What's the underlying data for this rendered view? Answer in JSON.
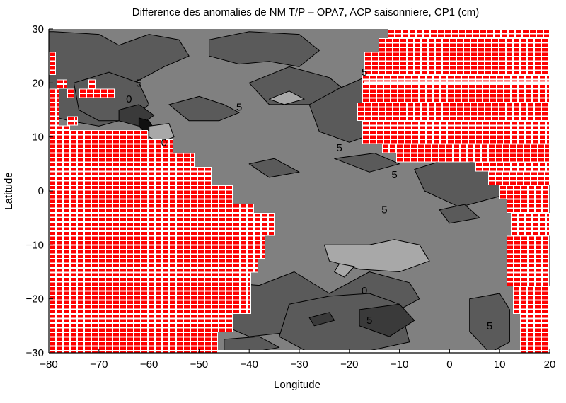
{
  "chart_data": {
    "type": "heatmap",
    "subtype": "filled-contour map",
    "title": "Difference des anomalies de NM T/P – OPA7, ACP saisonniere, CP1   (cm)",
    "xlabel": "Longitude",
    "ylabel": "Latitude",
    "xlim": [
      -80,
      20
    ],
    "ylim": [
      -30,
      30
    ],
    "x_ticks": [
      -80,
      -70,
      -60,
      -50,
      -40,
      -30,
      -20,
      -10,
      0,
      10,
      20
    ],
    "y_ticks": [
      -30,
      -20,
      -10,
      0,
      10,
      20,
      30
    ],
    "x_tick_labels": [
      "−80",
      "−70",
      "−60",
      "−50",
      "−40",
      "−30",
      "−20",
      "−10",
      "0",
      "10",
      "20"
    ],
    "y_tick_labels": [
      "−30",
      "−20",
      "−10",
      "0",
      "10",
      "20",
      "30"
    ],
    "grid": false,
    "colors": {
      "background_field": "#808080",
      "level_low": "#5a5a5a",
      "level_high": "#a8a8a8",
      "level_min": "#3a3a3a",
      "level_extreme": "#111111",
      "land_mask": "#ff0000",
      "land_grid": "#ffffff"
    },
    "levels": [
      -10,
      -5,
      0,
      5,
      10
    ],
    "regions": [
      {
        "name": "lower level",
        "color": "level_low",
        "points": [
          [
            -79,
            29.5
          ],
          [
            -70,
            29
          ],
          [
            -66,
            27
          ],
          [
            -60,
            29
          ],
          [
            -54,
            28
          ],
          [
            -52,
            25
          ],
          [
            -57,
            23
          ],
          [
            -61,
            21
          ],
          [
            -65,
            19
          ],
          [
            -68,
            16
          ],
          [
            -66,
            13
          ],
          [
            -70,
            12
          ],
          [
            -76,
            13
          ],
          [
            -80,
            14
          ],
          [
            -80,
            29.5
          ]
        ]
      },
      {
        "name": "lower level",
        "color": "level_low",
        "points": [
          [
            -75,
            20
          ],
          [
            -68,
            22
          ],
          [
            -62,
            20
          ],
          [
            -60,
            16
          ],
          [
            -64,
            13
          ],
          [
            -70,
            13
          ],
          [
            -74,
            15
          ]
        ]
      },
      {
        "name": "lower level",
        "color": "level_low",
        "points": [
          [
            -56,
            16
          ],
          [
            -50,
            17.5
          ],
          [
            -45,
            16
          ],
          [
            -42,
            14.5
          ],
          [
            -46,
            13
          ],
          [
            -52,
            13
          ]
        ]
      },
      {
        "name": "lower level",
        "color": "level_low",
        "points": [
          [
            -48,
            28
          ],
          [
            -40,
            29.5
          ],
          [
            -30,
            29
          ],
          [
            -26,
            26
          ],
          [
            -30,
            23
          ],
          [
            -36,
            24
          ],
          [
            -42,
            23.5
          ],
          [
            -48,
            25
          ]
        ]
      },
      {
        "name": "lower level",
        "color": "level_low",
        "points": [
          [
            -40,
            20
          ],
          [
            -32,
            23
          ],
          [
            -24,
            21
          ],
          [
            -20,
            18
          ],
          [
            -27,
            16
          ],
          [
            -36,
            16
          ]
        ]
      },
      {
        "name": "lower level",
        "color": "level_low",
        "points": [
          [
            -28,
            16
          ],
          [
            -22,
            19
          ],
          [
            -17,
            21
          ],
          [
            -12,
            21
          ],
          [
            -11,
            15
          ],
          [
            -14,
            11
          ],
          [
            -20,
            9
          ],
          [
            -26,
            11
          ]
        ]
      },
      {
        "name": "lower level",
        "color": "level_low",
        "points": [
          [
            -40,
            5
          ],
          [
            -35,
            6
          ],
          [
            -30,
            3.5
          ],
          [
            -36,
            2.5
          ]
        ]
      },
      {
        "name": "lower level",
        "color": "level_low",
        "points": [
          [
            -23,
            6
          ],
          [
            -15,
            7
          ],
          [
            -10,
            5
          ],
          [
            -16,
            3.5
          ]
        ]
      },
      {
        "name": "lower level",
        "color": "level_low",
        "points": [
          [
            -7,
            4
          ],
          [
            0,
            6
          ],
          [
            6,
            5
          ],
          [
            10,
            3
          ],
          [
            10,
            -1
          ],
          [
            2,
            -3
          ],
          [
            -5,
            0
          ]
        ]
      },
      {
        "name": "lower level",
        "color": "level_low",
        "points": [
          [
            -2,
            -3.5
          ],
          [
            3,
            -2.5
          ],
          [
            6,
            -5
          ],
          [
            0,
            -6
          ]
        ]
      },
      {
        "name": "lower level",
        "color": "level_low",
        "points": [
          [
            -45,
            -17
          ],
          [
            -38,
            -17.5
          ],
          [
            -31,
            -15
          ],
          [
            -24,
            -19
          ],
          [
            -16,
            -15
          ],
          [
            -8,
            -17
          ],
          [
            -6,
            -20
          ],
          [
            -14,
            -24
          ],
          [
            -22,
            -24
          ],
          [
            -30,
            -26
          ],
          [
            -40,
            -27
          ],
          [
            -45,
            -25
          ]
        ]
      },
      {
        "name": "lower level",
        "color": "level_low",
        "points": [
          [
            -32,
            -21
          ],
          [
            -24,
            -19.5
          ],
          [
            -16,
            -19
          ],
          [
            -10,
            -21
          ],
          [
            -8,
            -28
          ],
          [
            -18,
            -30
          ],
          [
            -28,
            -30
          ],
          [
            -34,
            -27
          ]
        ]
      },
      {
        "name": "lower level",
        "color": "level_low",
        "points": [
          [
            4,
            -20
          ],
          [
            10,
            -19
          ],
          [
            12,
            -22
          ],
          [
            12,
            -28
          ],
          [
            8,
            -30
          ],
          [
            4,
            -26
          ]
        ]
      },
      {
        "name": "lower level",
        "color": "level_low",
        "points": [
          [
            -45,
            -27.5
          ],
          [
            -38,
            -27
          ],
          [
            -34,
            -29
          ],
          [
            -40,
            -30
          ],
          [
            -45,
            -30
          ]
        ]
      },
      {
        "name": "minimum",
        "color": "level_min",
        "points": [
          [
            -66,
            15
          ],
          [
            -62,
            16
          ],
          [
            -59,
            14
          ],
          [
            -62,
            12
          ],
          [
            -66,
            13
          ]
        ]
      },
      {
        "name": "minimum",
        "color": "level_min",
        "points": [
          [
            -18,
            -22
          ],
          [
            -10,
            -21
          ],
          [
            -7,
            -24
          ],
          [
            -12,
            -27
          ],
          [
            -18,
            -25
          ]
        ]
      },
      {
        "name": "minimum",
        "color": "level_min",
        "points": [
          [
            -28,
            -23.5
          ],
          [
            -24,
            -22.5
          ],
          [
            -23,
            -24
          ],
          [
            -27,
            -25
          ]
        ]
      },
      {
        "name": "extreme",
        "color": "level_extreme",
        "points": [
          [
            -62,
            13.5
          ],
          [
            -60,
            13
          ],
          [
            -59,
            11.5
          ],
          [
            -61,
            11
          ],
          [
            -62,
            12
          ]
        ]
      },
      {
        "name": "higher level",
        "color": "level_high",
        "points": [
          [
            -60,
            12
          ],
          [
            -56,
            12.5
          ],
          [
            -55,
            10
          ],
          [
            -58,
            9
          ],
          [
            -60,
            10
          ]
        ]
      },
      {
        "name": "higher level",
        "color": "level_high",
        "points": [
          [
            -36,
            17
          ],
          [
            -32,
            18.5
          ],
          [
            -29,
            17
          ],
          [
            -33,
            16
          ]
        ]
      },
      {
        "name": "higher level",
        "color": "level_high",
        "points": [
          [
            -25,
            -10
          ],
          [
            -16,
            -10
          ],
          [
            -11,
            -9
          ],
          [
            -6,
            -10
          ],
          [
            -4,
            -13
          ],
          [
            -10,
            -15
          ],
          [
            -18,
            -14.5
          ],
          [
            -24,
            -13
          ]
        ]
      },
      {
        "name": "higher level",
        "color": "level_high",
        "points": [
          [
            -22,
            -13.5
          ],
          [
            -19,
            -14
          ],
          [
            -21,
            -16
          ],
          [
            -23,
            -15
          ]
        ]
      }
    ],
    "contour_labels": [
      {
        "text": "5",
        "lon": -62,
        "lat": 20
      },
      {
        "text": "0",
        "lon": -64,
        "lat": 17
      },
      {
        "text": "0",
        "lon": -57,
        "lat": 9
      },
      {
        "text": "5",
        "lon": -42,
        "lat": 15.5
      },
      {
        "text": "5",
        "lon": -22,
        "lat": 8
      },
      {
        "text": "5",
        "lon": -17,
        "lat": 22
      },
      {
        "text": "5",
        "lon": -11,
        "lat": 3
      },
      {
        "text": "5",
        "lon": -13,
        "lat": -3.5
      },
      {
        "text": "0",
        "lon": -17,
        "lat": -18.5
      },
      {
        "text": "5",
        "lon": -16,
        "lat": -24
      },
      {
        "text": "5",
        "lon": 8,
        "lat": -25
      }
    ]
  }
}
